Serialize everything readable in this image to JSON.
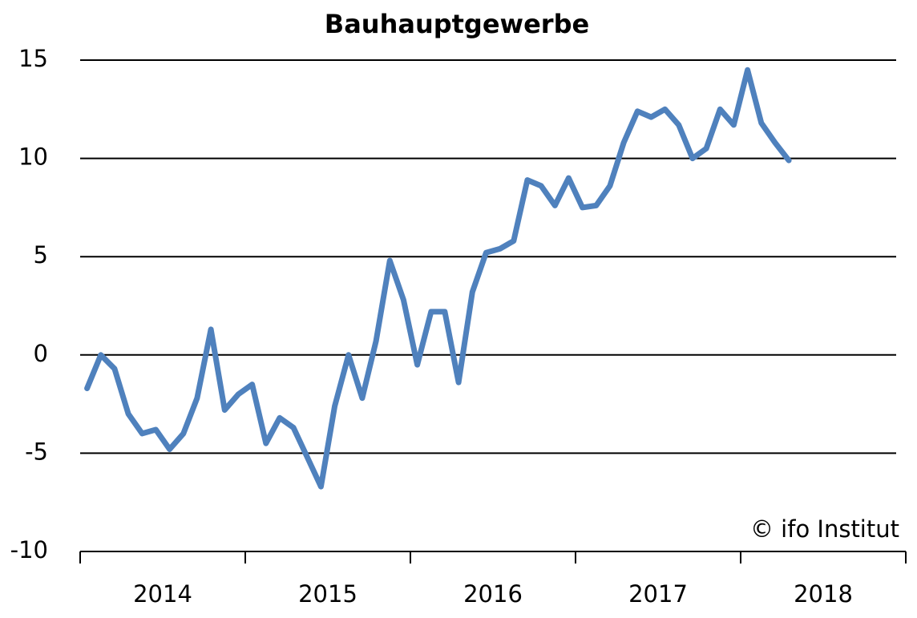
{
  "chart_data": {
    "type": "line",
    "title": "Bauhauptgewerbe",
    "annotation": "© ifo Institut",
    "categories": [
      null,
      null,
      null,
      null,
      null,
      null,
      null,
      null,
      null,
      null,
      null,
      null,
      null,
      null,
      null,
      null,
      null,
      null,
      null,
      null,
      null,
      null,
      null,
      null,
      null,
      null,
      null,
      null,
      null,
      null,
      null,
      null,
      null,
      null,
      null,
      null,
      null,
      null,
      null,
      null,
      null,
      null,
      null,
      null,
      null,
      null,
      null,
      null,
      null,
      null,
      null,
      null,
      null,
      null,
      null,
      null,
      null,
      null,
      null,
      null
    ],
    "year_labels": [
      "2014",
      "2015",
      "2016",
      "2017",
      "2018"
    ],
    "series": [
      {
        "name": null,
        "color": "#4f81bd",
        "values": [
          -1.7,
          0,
          -0.7,
          -3.0,
          -4.0,
          -3.8,
          -4.8,
          -4.0,
          -2.2,
          1.3,
          -2.8,
          -2.0,
          -1.5,
          -4.5,
          -3.2,
          -3.7,
          -5.2,
          -6.7,
          -2.6,
          0,
          -2.2,
          0.7,
          4.8,
          2.8,
          -0.5,
          2.2,
          2.2,
          -1.4,
          3.2,
          5.2,
          5.4,
          5.8,
          8.9,
          8.6,
          7.6,
          9.0,
          7.5,
          7.6,
          8.6,
          10.8,
          12.4,
          12.1,
          12.5,
          11.7,
          10.0,
          10.5,
          12.5,
          11.7,
          14.5,
          11.8,
          10.8,
          9.9,
          null,
          null,
          null,
          null,
          null,
          null,
          null,
          null
        ]
      }
    ],
    "ylim": [
      -10,
      15
    ],
    "yticks": [
      -10,
      -5,
      0,
      5,
      10,
      15
    ],
    "grid": true
  }
}
